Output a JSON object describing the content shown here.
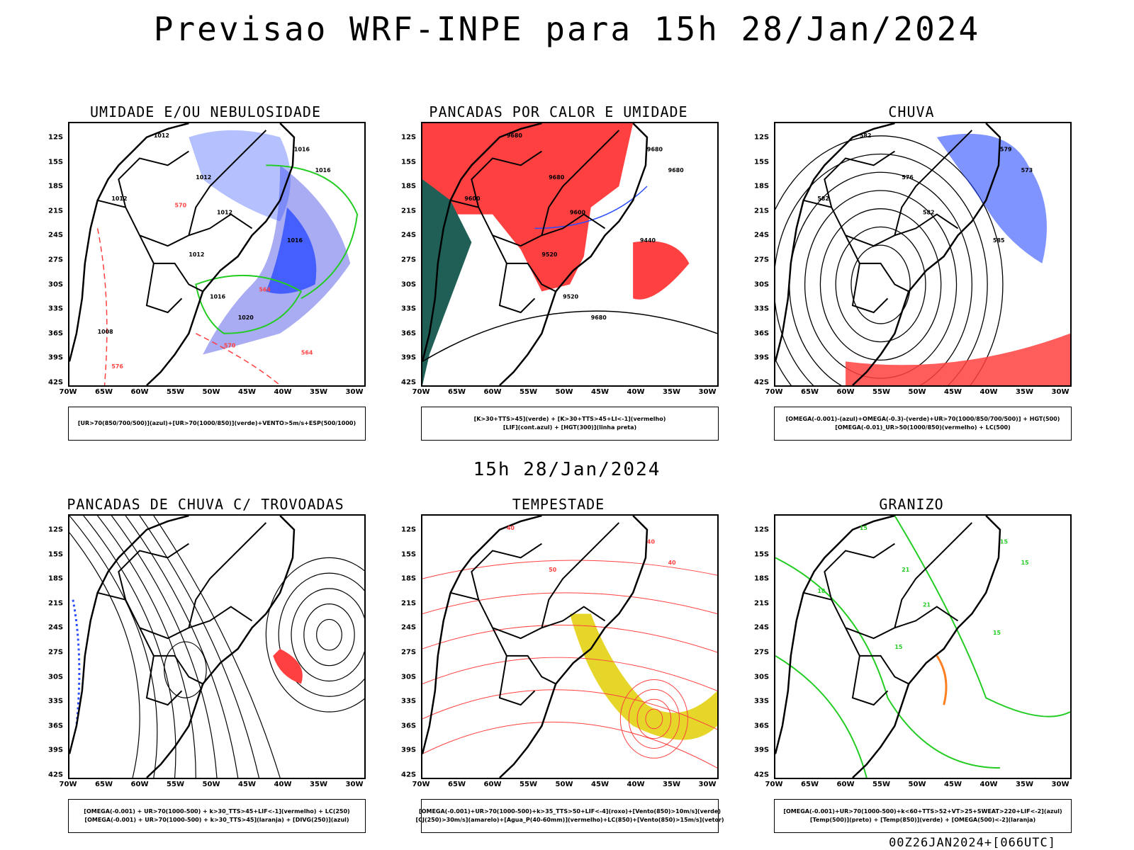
{
  "header": {
    "title": "Previsao WRF-INPE  para 15h 28/Jan/2024"
  },
  "mid_title": "15h 28/Jan/2024",
  "footer": "00Z26JAN2024+[066UTC]",
  "axes": {
    "lat_labels": [
      "12S",
      "15S",
      "18S",
      "21S",
      "24S",
      "27S",
      "30S",
      "33S",
      "36S",
      "39S",
      "42S"
    ],
    "lon_labels": [
      "70W",
      "65W",
      "60W",
      "55W",
      "50W",
      "45W",
      "40W",
      "35W",
      "30W"
    ]
  },
  "colors": {
    "blue": "#2b4cff",
    "green": "#22cc22",
    "red": "#ff4040",
    "teal": "#1f5f55",
    "yellow": "#e6d62a",
    "lightblue": "#a9acf2",
    "orange": "#ff7f20"
  },
  "panels": [
    {
      "title": "UMIDADE E/OU NEBULOSIDADE",
      "legend": [
        "[UR>70(850/700/500)](azul)+[UR>70(1000/850)](verde)+VENTO>5m/s+ESP(500/1000)"
      ],
      "labels": [
        "1012",
        "1016",
        "1016",
        "1012",
        "1012",
        "1012",
        "1016",
        "1012",
        "1016",
        "1020",
        "1008",
        "576",
        "570",
        "564",
        "570",
        "564"
      ]
    },
    {
      "title": "PANCADAS POR CALOR E UMIDADE",
      "legend": [
        "[K>30+TTS>45](verde) + [K>30+TTS>45+LI<-1](vermelho)",
        "[LIF](cont.azul) + [HGT(300)](linha preta)"
      ],
      "labels": [
        "9680",
        "9680",
        "9680",
        "9680",
        "9600",
        "9600",
        "9440",
        "9520",
        "9520",
        "9680"
      ]
    },
    {
      "title": "CHUVA",
      "legend": [
        "[OMEGA(-0.001)-(azul)+OMEGA(-0.3)-(verde)+UR>70(1000/850/700/500)] + HGT(500)",
        "[OMEGA(-0.01)_UR>50(1000/850)(vermelho) + LC(500)"
      ],
      "labels": [
        "582",
        "579",
        "573",
        "576",
        "582",
        "582",
        "585"
      ]
    },
    {
      "title": "PANCADAS DE CHUVA C/ TROVOADAS",
      "legend": [
        "[OMEGA(-0.001) + UR>70(1000-500) + k>30_TTS>45+LIF<-1](vermelho) + LC(250)",
        "[OMEGA(-0.001) + UR>70(1000-500) + k>30_TTS>45](laranja) + [DIVG(250)](azul)"
      ],
      "labels": []
    },
    {
      "title": "TEMPESTADE",
      "legend": [
        "[OMEGA(-0.001)+UR>70(1000-500)+k>35_TTS>50+LIF<-4](roxo)+[Vento(850)>10m/s](verde)",
        "[CJ(250)>30m/s](amarelo)+[Agua_P(40-60mm)](vermelho)+LC(850)+[Vento(850)>15m/s](vetor)"
      ],
      "labels": [
        "40",
        "40",
        "40",
        "50"
      ]
    },
    {
      "title": "GRANIZO",
      "legend": [
        "[OMEGA(-0.001)+UR>70(1000-500)+k<60+TTS>52+VT>25+SWEAT>220+LIF<-2](azul)",
        "[Temp(500)](preto) + [Temp(850)](verde) + [OMEGA(500)<-2](laranja)"
      ],
      "labels": [
        "15",
        "15",
        "15",
        "21",
        "18",
        "21",
        "15",
        "15"
      ]
    }
  ]
}
